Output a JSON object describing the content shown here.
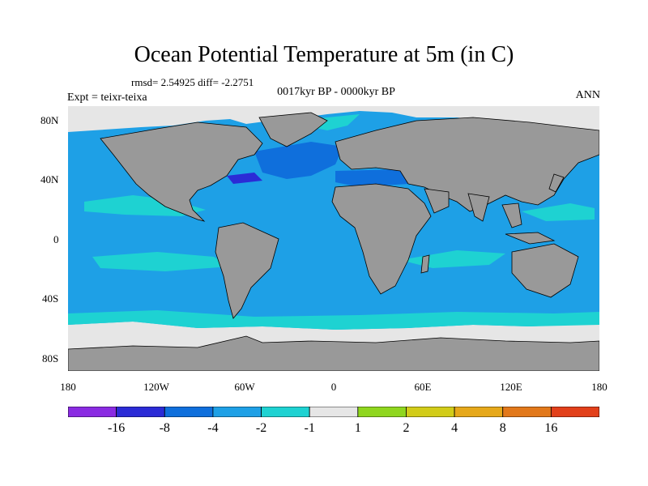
{
  "figure": {
    "title": "Ocean Potential Temperature at 5m (in C)",
    "stats": "rmsd= 2.54925  diff= -2.2751",
    "experiment": "Expt = teixr-teixa",
    "period": "0017kyr BP - 0000kyr BP",
    "season": "ANN"
  },
  "map": {
    "land_color": "#999999",
    "lat_labels": [
      "80N",
      "40N",
      "0",
      "40S",
      "80S"
    ],
    "lon_labels": [
      "180",
      "120W",
      "60W",
      "0",
      "60E",
      "120E",
      "180"
    ]
  },
  "colorbar": {
    "colors": [
      "#8a2be2",
      "#2b2bd6",
      "#0f6fdc",
      "#1ea0e6",
      "#1ed2d2",
      "#e6e6e6",
      "#8fd61e",
      "#d2cc18",
      "#e6a81a",
      "#e2781a",
      "#e2401a"
    ],
    "tick_labels": [
      "-16",
      "-8",
      "-4",
      "-2",
      "-1",
      "1",
      "2",
      "4",
      "8",
      "16"
    ]
  },
  "chart_data": {
    "type": "heatmap",
    "title": "Ocean Potential Temperature at 5m (in C)",
    "levels": [
      -16,
      -8,
      -4,
      -2,
      -1,
      1,
      2,
      4,
      8,
      16
    ],
    "lon_range": [
      -180,
      180
    ],
    "lat_range": [
      -90,
      90
    ],
    "lat_ticks": [
      "80N",
      "40N",
      "0",
      "40S",
      "80S"
    ],
    "lon_ticks": [
      "180",
      "120W",
      "60W",
      "0",
      "60E",
      "120E",
      "180"
    ]
  }
}
